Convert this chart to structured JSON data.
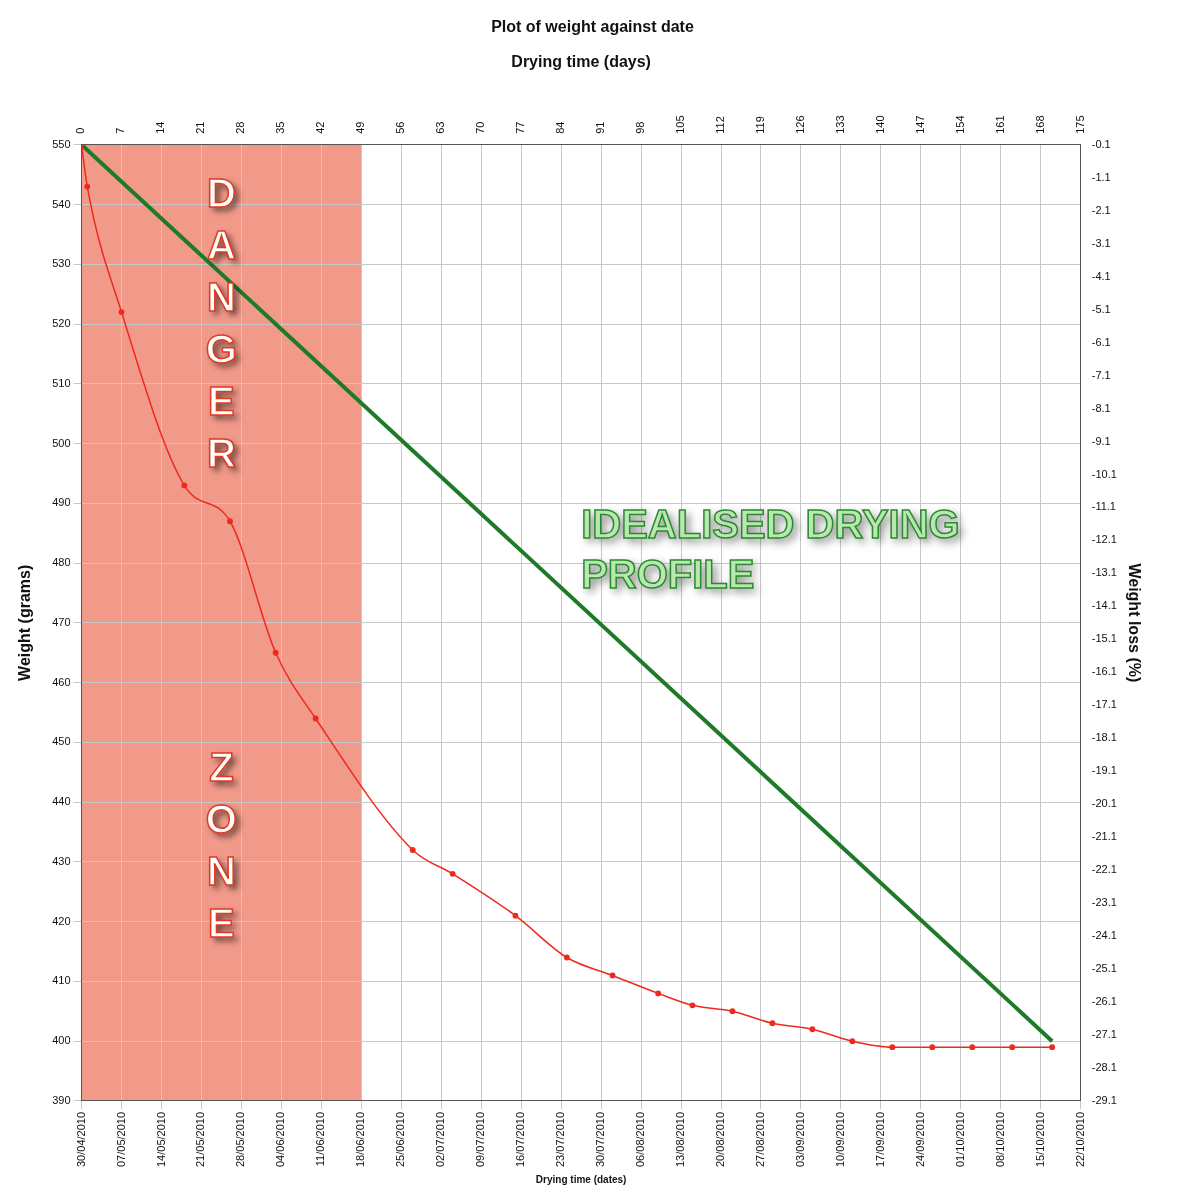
{
  "chart_data": {
    "type": "line",
    "title": "Plot of weight against date",
    "x2label": "Drying time (days)",
    "xlabel": "Drying time (dates)",
    "ylabel": "Weight (grams)",
    "y2label": "Weight loss (%)",
    "x": [
      "2010-04-30",
      "2010-05-01",
      "2010-05-07",
      "2010-05-18",
      "2010-05-26",
      "2010-06-03",
      "2010-06-10",
      "2010-06-27",
      "2010-07-04",
      "2010-07-15",
      "2010-07-24",
      "2010-08-01",
      "2010-08-09",
      "2010-08-15",
      "2010-08-22",
      "2010-08-29",
      "2010-09-05",
      "2010-09-12",
      "2010-09-19",
      "2010-09-26",
      "2010-10-03",
      "2010-10-10",
      "2010-10-17"
    ],
    "series": [
      {
        "color": "#ee2a1e",
        "marker": "circle",
        "values": [
          550,
          543,
          522,
          493,
          487,
          465,
          454,
          432,
          428,
          421,
          414,
          411,
          408,
          406,
          405,
          403,
          402,
          400,
          399,
          399,
          399,
          399,
          399
        ]
      },
      {
        "color": "#1e7a28",
        "marker": "none",
        "x": [
          "2010-04-30",
          "2010-10-17"
        ],
        "values": [
          550,
          400
        ]
      }
    ],
    "xlim": [
      "2010-04-30",
      "2010-10-22"
    ],
    "xticks": [
      {
        "value": "2010-04-30",
        "label": "30/04/2010"
      },
      {
        "value": "2010-05-07",
        "label": "07/05/2010"
      },
      {
        "value": "2010-05-14",
        "label": "14/05/2010"
      },
      {
        "value": "2010-05-21",
        "label": "21/05/2010"
      },
      {
        "value": "2010-05-28",
        "label": "28/05/2010"
      },
      {
        "value": "2010-06-04",
        "label": "04/06/2010"
      },
      {
        "value": "2010-06-11",
        "label": "11/06/2010"
      },
      {
        "value": "2010-06-18",
        "label": "18/06/2010"
      },
      {
        "value": "2010-06-25",
        "label": "25/06/2010"
      },
      {
        "value": "2010-07-02",
        "label": "02/07/2010"
      },
      {
        "value": "2010-07-09",
        "label": "09/07/2010"
      },
      {
        "value": "2010-07-16",
        "label": "16/07/2010"
      },
      {
        "value": "2010-07-23",
        "label": "23/07/2010"
      },
      {
        "value": "2010-07-30",
        "label": "30/07/2010"
      },
      {
        "value": "2010-08-06",
        "label": "06/08/2010"
      },
      {
        "value": "2010-08-13",
        "label": "13/08/2010"
      },
      {
        "value": "2010-08-20",
        "label": "20/08/2010"
      },
      {
        "value": "2010-08-27",
        "label": "27/08/2010"
      },
      {
        "value": "2010-09-03",
        "label": "03/09/2010"
      },
      {
        "value": "2010-09-10",
        "label": "10/09/2010"
      },
      {
        "value": "2010-09-17",
        "label": "17/09/2010"
      },
      {
        "value": "2010-09-24",
        "label": "24/09/2010"
      },
      {
        "value": "2010-10-01",
        "label": "01/10/2010"
      },
      {
        "value": "2010-10-08",
        "label": "08/10/2010"
      },
      {
        "value": "2010-10-15",
        "label": "15/10/2010"
      },
      {
        "value": "2010-10-22",
        "label": "22/10/2010"
      }
    ],
    "x2lim": [
      0,
      175
    ],
    "x2ticks": [
      0,
      7,
      14,
      21,
      28,
      35,
      42,
      49,
      56,
      63,
      70,
      77,
      84,
      91,
      98,
      105,
      112,
      119,
      126,
      133,
      140,
      147,
      154,
      161,
      168,
      175
    ],
    "ylim": [
      390,
      550
    ],
    "yticks": [
      390,
      400,
      410,
      420,
      430,
      440,
      450,
      460,
      470,
      480,
      490,
      500,
      510,
      520,
      530,
      540,
      550
    ],
    "y2lim": [
      -29.1,
      -0.1
    ],
    "y2ticks": [
      -29.1,
      -28.1,
      -27.1,
      -26.1,
      -25.1,
      -24.1,
      -23.1,
      -22.1,
      -21.1,
      -20.1,
      -19.1,
      -18.1,
      -17.1,
      -16.1,
      -15.1,
      -14.1,
      -13.1,
      -12.1,
      -11.1,
      -10.1,
      -9.1,
      -8.1,
      -7.1,
      -6.1,
      -5.1,
      -4.1,
      -3.1,
      -2.1,
      -1.1,
      -0.1
    ],
    "bands": [
      {
        "axis": "x",
        "from": "2010-04-30",
        "to": "2010-06-18",
        "label": "DANGER ZONE",
        "color": "#f29a8a"
      }
    ],
    "annotations": [
      "IDEALISED DRYING PROFILE"
    ],
    "grid": true,
    "legend": false
  }
}
